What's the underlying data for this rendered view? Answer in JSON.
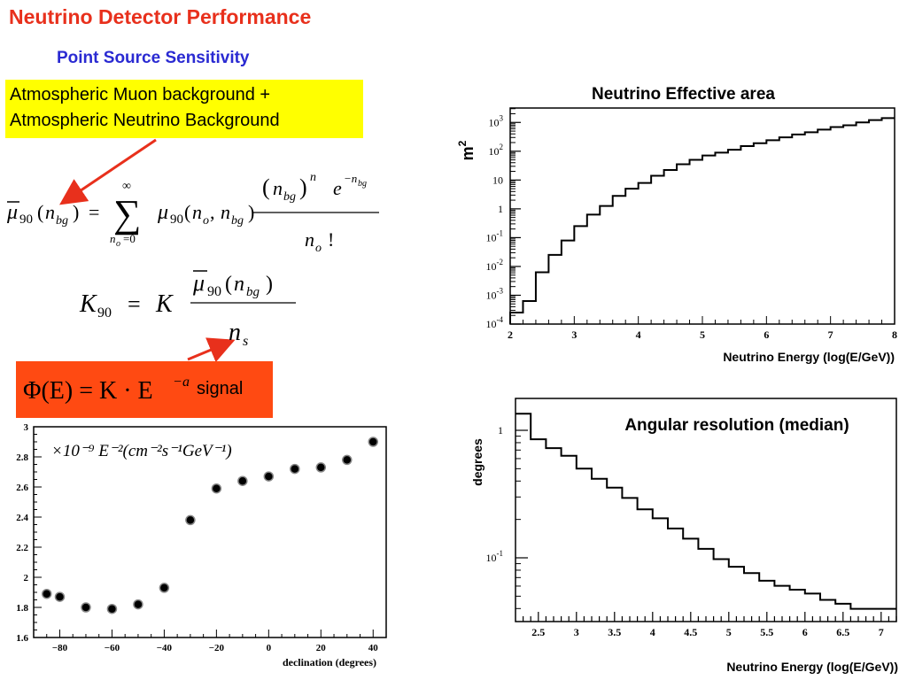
{
  "header": {
    "title": "Neutrino Detector Performance",
    "subtitle": "Point Source Sensitivity"
  },
  "background_box": {
    "line1": "Atmospheric Muon background +",
    "line2": "Atmospheric Neutrino Background"
  },
  "signal_box": {
    "label": "signal"
  },
  "colors": {
    "title": "#e8301c",
    "subtitle": "#2a2ad2",
    "highlight_yellow": "#ffff00",
    "signal_box": "#ff4a12",
    "arrow": "#e8301c"
  },
  "chart_data": [
    {
      "type": "scatter",
      "xlabel": "declination (degrees)",
      "annotation": "×10⁻⁹ E⁻²(cm⁻²s⁻¹GeV⁻¹)",
      "xlim": [
        -90,
        45
      ],
      "ylim": [
        1.6,
        3.0
      ],
      "xticks": [
        -80,
        -60,
        -40,
        -20,
        0,
        20,
        40
      ],
      "yticks": [
        1.6,
        1.8,
        2.0,
        2.2,
        2.4,
        2.6,
        2.8,
        3.0
      ],
      "ytick_labels": [
        "1.6",
        "1.8",
        "2",
        "2.2",
        "2.4",
        "2.6",
        "2.8",
        "3"
      ],
      "x": [
        -85,
        -80,
        -70,
        -60,
        -50,
        -40,
        -30,
        -20,
        -10,
        0,
        10,
        20,
        30,
        40
      ],
      "y": [
        1.89,
        1.87,
        1.8,
        1.79,
        1.82,
        1.93,
        2.38,
        2.59,
        2.64,
        2.67,
        2.72,
        2.73,
        2.78,
        2.9
      ]
    },
    {
      "type": "line",
      "title": "Neutrino Effective area",
      "xlabel": "Neutrino Energy (log(E/GeV))",
      "ylabel": "m²",
      "ylabel_base": "m",
      "ylabel_exp": "2",
      "scale_y": "log",
      "xlim": [
        2,
        8
      ],
      "ylim_log10": [
        -4,
        3.5
      ],
      "xticks": [
        2,
        3,
        4,
        5,
        6,
        7,
        8
      ],
      "ytick_labels": [
        "10-4",
        "10-3",
        "10-2",
        "10-1",
        "1",
        "10",
        "102",
        "103"
      ],
      "ytick_values_log10": [
        -4,
        -3,
        -2,
        -1,
        0,
        1,
        2,
        3
      ],
      "step_edges": [
        2.0,
        2.2,
        2.4,
        2.6,
        2.8,
        3.0,
        3.2,
        3.4,
        3.6,
        3.8,
        4.0,
        4.2,
        4.4,
        4.6,
        4.8,
        5.0,
        5.2,
        5.4,
        5.6,
        5.8,
        6.0,
        6.2,
        6.4,
        6.6,
        6.8,
        7.0,
        7.2,
        7.4,
        7.6,
        7.8,
        8.0
      ],
      "step_log10": [
        -3.6,
        -3.2,
        -2.2,
        -1.6,
        -1.1,
        -0.6,
        -0.2,
        0.1,
        0.45,
        0.7,
        0.9,
        1.15,
        1.35,
        1.55,
        1.7,
        1.85,
        1.95,
        2.05,
        2.18,
        2.28,
        2.38,
        2.48,
        2.58,
        2.66,
        2.75,
        2.84,
        2.9,
        3.0,
        3.08,
        3.15
      ]
    },
    {
      "type": "line",
      "title": "Angular resolution (median)",
      "xlabel": "Neutrino Energy (log(E/GeV))",
      "ylabel": "degrees",
      "scale_y": "log",
      "xlim": [
        2.2,
        7.2
      ],
      "ylim_log10": [
        -1.5,
        0.25
      ],
      "xticks": [
        2.5,
        3,
        3.5,
        4,
        4.5,
        5,
        5.5,
        6,
        6.5,
        7
      ],
      "xtick_labels": [
        "2.5",
        "3",
        "3.5",
        "4",
        "4.5",
        "5",
        "5.5",
        "6",
        "6.5",
        "7"
      ],
      "ytick_labels": [
        "10-1",
        "1"
      ],
      "ytick_values_log10": [
        -1,
        0
      ],
      "step_edges": [
        2.2,
        2.4,
        2.6,
        2.8,
        3.0,
        3.2,
        3.4,
        3.6,
        3.8,
        4.0,
        4.2,
        4.4,
        4.6,
        4.8,
        5.0,
        5.2,
        5.4,
        5.6,
        5.8,
        6.0,
        6.2,
        6.4,
        6.6,
        7.2
      ],
      "step_log10": [
        0.13,
        -0.07,
        -0.14,
        -0.2,
        -0.3,
        -0.38,
        -0.45,
        -0.53,
        -0.62,
        -0.69,
        -0.77,
        -0.85,
        -0.93,
        -1.01,
        -1.07,
        -1.12,
        -1.18,
        -1.22,
        -1.25,
        -1.28,
        -1.33,
        -1.36,
        -1.4
      ]
    }
  ]
}
